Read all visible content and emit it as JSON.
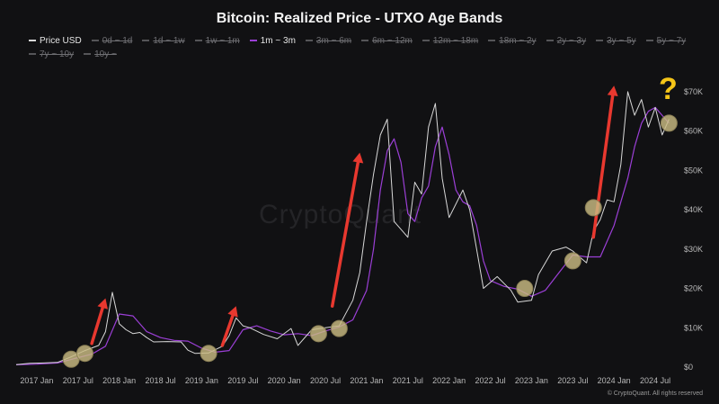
{
  "title": "Bitcoin: Realized Price - UTXO Age Bands",
  "legend": [
    {
      "label": "Price USD",
      "color": "#d8d8d8",
      "active": true
    },
    {
      "label": "0d ~ 1d",
      "color": "#555558",
      "active": false
    },
    {
      "label": "1d ~ 1w",
      "color": "#555558",
      "active": false
    },
    {
      "label": "1w ~ 1m",
      "color": "#555558",
      "active": false
    },
    {
      "label": "1m ~ 3m",
      "color": "#9b3fd6",
      "active": true
    },
    {
      "label": "3m ~ 6m",
      "color": "#555558",
      "active": false
    },
    {
      "label": "6m ~ 12m",
      "color": "#555558",
      "active": false
    },
    {
      "label": "12m ~ 18m",
      "color": "#555558",
      "active": false
    },
    {
      "label": "18m ~ 2y",
      "color": "#555558",
      "active": false
    },
    {
      "label": "2y ~ 3y",
      "color": "#555558",
      "active": false
    },
    {
      "label": "3y ~ 5y",
      "color": "#555558",
      "active": false
    },
    {
      "label": "5y ~ 7y",
      "color": "#555558",
      "active": false
    },
    {
      "label": "7y ~ 10y",
      "color": "#555558",
      "active": false
    },
    {
      "label": "10y ~",
      "color": "#555558",
      "active": false
    }
  ],
  "watermark": "CryptoQuant",
  "annotation": {
    "question_mark": "?",
    "arrow_color": "#e8382f",
    "highlight_color": "#c9bb82"
  },
  "copyright": "© CryptoQuant. All rights reserved",
  "chart_data": {
    "type": "line",
    "ylim": [
      0,
      75000
    ],
    "xlim": [
      "2016-10",
      "2024-10"
    ],
    "grid": false,
    "legend_position": "top",
    "y_axis_side": "right",
    "y_ticks": [
      0,
      10000,
      20000,
      30000,
      40000,
      50000,
      60000,
      70000
    ],
    "y_tick_labels": [
      "$0",
      "$10K",
      "$20K",
      "$30K",
      "$40K",
      "$50K",
      "$60K",
      "$70K"
    ],
    "x_ticks": [
      "2017-01",
      "2017-07",
      "2018-01",
      "2018-07",
      "2019-01",
      "2019-07",
      "2020-01",
      "2020-07",
      "2021-01",
      "2021-07",
      "2022-01",
      "2022-07",
      "2023-01",
      "2023-07",
      "2024-01",
      "2024-07"
    ],
    "x_tick_labels": [
      "2017 Jan",
      "2017 Jul",
      "2018 Jan",
      "2018 Jul",
      "2019 Jan",
      "2019 Jul",
      "2020 Jan",
      "2020 Jul",
      "2021 Jan",
      "2021 Jul",
      "2022 Jan",
      "2022 Jul",
      "2023 Jan",
      "2023 Jul",
      "2024 Jan",
      "2024 Jul"
    ],
    "series": [
      {
        "name": "Price USD",
        "color": "#d8d8d8",
        "x": [
          "2016-10",
          "2016-12",
          "2017-02",
          "2017-04",
          "2017-06",
          "2017-08",
          "2017-10",
          "2017-11",
          "2017-12",
          "2018-01",
          "2018-02",
          "2018-03",
          "2018-04",
          "2018-05",
          "2018-06",
          "2018-08",
          "2018-10",
          "2018-11",
          "2018-12",
          "2019-02",
          "2019-04",
          "2019-05",
          "2019-06",
          "2019-07",
          "2019-08",
          "2019-10",
          "2019-12",
          "2020-02",
          "2020-03",
          "2020-05",
          "2020-07",
          "2020-09",
          "2020-11",
          "2020-12",
          "2021-01",
          "2021-02",
          "2021-03",
          "2021-04",
          "2021-05",
          "2021-06",
          "2021-07",
          "2021-08",
          "2021-09",
          "2021-10",
          "2021-11",
          "2021-12",
          "2022-01",
          "2022-03",
          "2022-04",
          "2022-05",
          "2022-06",
          "2022-08",
          "2022-10",
          "2022-11",
          "2023-01",
          "2023-02",
          "2023-04",
          "2023-06",
          "2023-07",
          "2023-09",
          "2023-10",
          "2023-11",
          "2023-12",
          "2024-01",
          "2024-02",
          "2024-03",
          "2024-04",
          "2024-05",
          "2024-06",
          "2024-07",
          "2024-08",
          "2024-09"
        ],
        "y": [
          620,
          950,
          1050,
          1200,
          2600,
          4200,
          5500,
          9000,
          19000,
          11000,
          9500,
          8500,
          8800,
          7500,
          6400,
          6500,
          6400,
          4300,
          3500,
          3600,
          5300,
          8000,
          12500,
          10500,
          10000,
          8300,
          7200,
          9800,
          5500,
          9500,
          10000,
          10500,
          17000,
          24000,
          37000,
          49000,
          59000,
          63000,
          37000,
          35000,
          33000,
          47000,
          44000,
          61000,
          67000,
          48000,
          38000,
          45000,
          40000,
          30000,
          20000,
          23000,
          19500,
          16500,
          17000,
          23500,
          29500,
          30500,
          29500,
          26500,
          34500,
          37500,
          42500,
          42000,
          51500,
          70000,
          64000,
          68000,
          61000,
          66000,
          59000,
          63000
        ]
      },
      {
        "name": "1m ~ 3m",
        "color": "#9b3fd6",
        "x": [
          "2016-10",
          "2017-01",
          "2017-04",
          "2017-07",
          "2017-09",
          "2017-11",
          "2018-01",
          "2018-03",
          "2018-05",
          "2018-07",
          "2018-09",
          "2018-11",
          "2019-01",
          "2019-03",
          "2019-05",
          "2019-07",
          "2019-09",
          "2019-11",
          "2020-01",
          "2020-03",
          "2020-05",
          "2020-07",
          "2020-09",
          "2020-11",
          "2021-01",
          "2021-02",
          "2021-03",
          "2021-04",
          "2021-05",
          "2021-06",
          "2021-07",
          "2021-08",
          "2021-09",
          "2021-10",
          "2021-11",
          "2021-12",
          "2022-01",
          "2022-02",
          "2022-03",
          "2022-04",
          "2022-05",
          "2022-06",
          "2022-07",
          "2022-09",
          "2022-11",
          "2023-01",
          "2023-03",
          "2023-05",
          "2023-07",
          "2023-09",
          "2023-11",
          "2024-01",
          "2024-02",
          "2024-03",
          "2024-04",
          "2024-05",
          "2024-06",
          "2024-07",
          "2024-08",
          "2024-09"
        ],
        "y": [
          600,
          750,
          1050,
          2400,
          3300,
          5300,
          13500,
          13000,
          9000,
          7500,
          6800,
          6600,
          4800,
          3800,
          4200,
          9500,
          10500,
          9200,
          8200,
          8500,
          8000,
          9200,
          10200,
          12000,
          19500,
          30000,
          45000,
          55000,
          58000,
          52000,
          39000,
          37000,
          43000,
          46000,
          56000,
          61000,
          54000,
          45000,
          42000,
          41000,
          36000,
          27000,
          22000,
          20500,
          19800,
          18000,
          19500,
          24000,
          28500,
          28000,
          28000,
          36000,
          42000,
          48000,
          56000,
          62000,
          65000,
          66000,
          64000,
          62000
        ]
      }
    ],
    "annotations": [
      {
        "type": "arrow",
        "from": {
          "x": "2017-09",
          "y": 6000
        },
        "to": {
          "x": "2017-11",
          "y": 17500
        }
      },
      {
        "type": "arrow",
        "from": {
          "x": "2019-04",
          "y": 5500
        },
        "to": {
          "x": "2019-06",
          "y": 15500
        }
      },
      {
        "type": "arrow",
        "from": {
          "x": "2020-08",
          "y": 15500
        },
        "to": {
          "x": "2020-12",
          "y": 54500
        }
      },
      {
        "type": "arrow",
        "from": {
          "x": "2023-10",
          "y": 33000
        },
        "to": {
          "x": "2024-01",
          "y": 71500
        }
      },
      {
        "type": "circle",
        "at": {
          "x": "2017-06",
          "y": 2000
        }
      },
      {
        "type": "circle",
        "at": {
          "x": "2017-08",
          "y": 3500
        }
      },
      {
        "type": "circle",
        "at": {
          "x": "2019-02",
          "y": 3500
        }
      },
      {
        "type": "circle",
        "at": {
          "x": "2020-06",
          "y": 8500
        }
      },
      {
        "type": "circle",
        "at": {
          "x": "2020-09",
          "y": 9800
        }
      },
      {
        "type": "circle",
        "at": {
          "x": "2022-12",
          "y": 20000
        }
      },
      {
        "type": "circle",
        "at": {
          "x": "2023-07",
          "y": 27000
        }
      },
      {
        "type": "circle",
        "at": {
          "x": "2023-10",
          "y": 40500
        }
      },
      {
        "type": "circle",
        "at": {
          "x": "2024-09",
          "y": 62000
        }
      }
    ]
  }
}
